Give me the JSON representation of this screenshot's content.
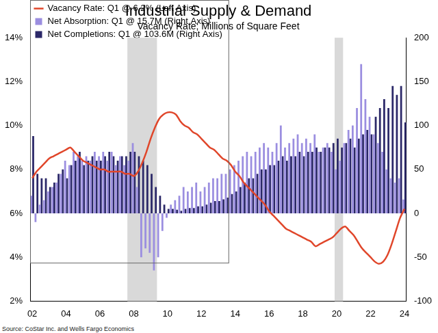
{
  "chart_data": {
    "type": "bar",
    "title": "Industrial Supply & Demand",
    "subtitle": "Vacancy Rate; Millions of Square Feet",
    "source": "Source: CoStar Inc. and Wells Fargo Economics",
    "categories": [
      "02",
      null,
      null,
      null,
      null,
      null,
      null,
      null,
      "04",
      null,
      null,
      null,
      null,
      null,
      null,
      null,
      "06",
      null,
      null,
      null,
      null,
      null,
      null,
      null,
      "08",
      null,
      null,
      null,
      null,
      null,
      null,
      null,
      "10",
      null,
      null,
      null,
      null,
      null,
      null,
      null,
      "12",
      null,
      null,
      null,
      null,
      null,
      null,
      null,
      "14",
      null,
      null,
      null,
      null,
      null,
      null,
      null,
      "16",
      null,
      null,
      null,
      null,
      null,
      null,
      null,
      "18",
      null,
      null,
      null,
      null,
      null,
      null,
      null,
      "20",
      null,
      null,
      null,
      null,
      null,
      null,
      null,
      "22",
      null,
      null,
      null,
      null,
      null,
      null,
      null,
      "24"
    ],
    "series": [
      {
        "name": "Net Absorption: Q1 @ 15.7M (Right Axis)",
        "type": "bar",
        "axis": "y2",
        "color": "#9b8ee0",
        "values": [
          20,
          -10,
          10,
          15,
          25,
          30,
          35,
          45,
          60,
          55,
          70,
          65,
          60,
          65,
          60,
          70,
          65,
          70,
          60,
          70,
          55,
          65,
          55,
          60,
          80,
          30,
          -50,
          -40,
          -45,
          -65,
          -50,
          -20,
          -5,
          10,
          15,
          20,
          30,
          25,
          30,
          35,
          25,
          30,
          35,
          40,
          40,
          45,
          45,
          50,
          55,
          60,
          65,
          70,
          65,
          70,
          75,
          80,
          75,
          70,
          80,
          100,
          75,
          80,
          85,
          90,
          80,
          85,
          80,
          90,
          70,
          75,
          80,
          70,
          50,
          60,
          80,
          95,
          100,
          120,
          170,
          130,
          110,
          90,
          80,
          70,
          50,
          40,
          35,
          40,
          15.7
        ]
      },
      {
        "name": "Net Completions: Q1 @ 103.6M (Right Axis)",
        "type": "bar",
        "axis": "y2",
        "color": "#2b2868",
        "values": [
          88,
          45,
          40,
          40,
          30,
          35,
          45,
          50,
          40,
          55,
          60,
          70,
          55,
          60,
          65,
          60,
          60,
          65,
          70,
          65,
          60,
          65,
          65,
          70,
          70,
          65,
          60,
          55,
          45,
          30,
          20,
          10,
          5,
          5,
          4,
          3,
          5,
          6,
          6,
          8,
          8,
          10,
          12,
          14,
          14,
          16,
          18,
          22,
          25,
          30,
          35,
          40,
          40,
          45,
          50,
          50,
          55,
          55,
          60,
          65,
          60,
          65,
          65,
          70,
          65,
          70,
          70,
          75,
          70,
          75,
          75,
          80,
          85,
          75,
          80,
          85,
          75,
          85,
          90,
          95,
          90,
          110,
          120,
          130,
          120,
          145,
          135,
          145,
          103.6
        ]
      },
      {
        "name": "Vacancy Rate: Q1 @ 6.2% (Left Axis)",
        "type": "line",
        "axis": "y",
        "color": "#e0462a",
        "values": [
          7.6,
          7.9,
          8.1,
          8.3,
          8.5,
          8.6,
          8.7,
          8.8,
          8.9,
          9.0,
          8.8,
          8.6,
          8.4,
          8.3,
          8.2,
          8.1,
          8.0,
          8.0,
          7.9,
          7.9,
          7.9,
          7.9,
          7.8,
          7.8,
          7.7,
          7.9,
          8.3,
          8.8,
          9.4,
          9.9,
          10.3,
          10.5,
          10.6,
          10.6,
          10.5,
          10.2,
          10.0,
          9.9,
          9.7,
          9.6,
          9.4,
          9.2,
          9.0,
          8.9,
          8.7,
          8.5,
          8.4,
          8.2,
          7.9,
          7.7,
          7.4,
          7.2,
          7.0,
          6.8,
          6.6,
          6.4,
          6.1,
          5.9,
          5.7,
          5.5,
          5.3,
          5.2,
          5.1,
          5.0,
          4.9,
          4.8,
          4.7,
          4.5,
          4.6,
          4.7,
          4.8,
          4.9,
          5.1,
          5.3,
          5.4,
          5.2,
          5.0,
          4.7,
          4.4,
          4.2,
          4.0,
          3.8,
          3.7,
          3.8,
          4.1,
          4.6,
          5.2,
          5.8,
          6.2
        ]
      }
    ],
    "recessions": [
      {
        "start": 23,
        "end": 29
      },
      {
        "start": 72,
        "end": 73
      }
    ],
    "ylim": [
      2,
      14
    ],
    "yticks": [
      {
        "value": 2,
        "label": "2%"
      },
      {
        "value": 4,
        "label": "4%"
      },
      {
        "value": 6,
        "label": "6%"
      },
      {
        "value": 8,
        "label": "8%"
      },
      {
        "value": 10,
        "label": "10%"
      },
      {
        "value": 12,
        "label": "12%"
      },
      {
        "value": 14,
        "label": "14%"
      }
    ],
    "y2lim": [
      -100,
      200
    ],
    "y2ticks": [
      -100,
      -50,
      0,
      50,
      100,
      150,
      200
    ],
    "grid": false,
    "legend": "upper left"
  }
}
